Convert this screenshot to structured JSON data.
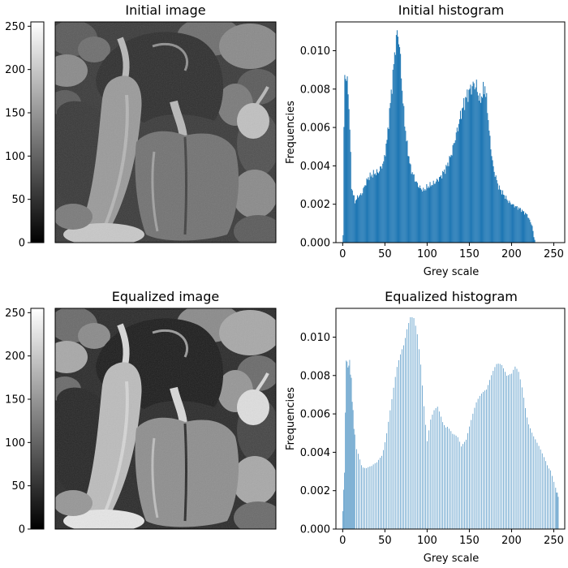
{
  "chart_data": [
    {
      "type": "image",
      "title": "Initial image",
      "colorbar": {
        "cmap": "gray",
        "range": [
          0,
          255
        ],
        "ticks": [
          0,
          50,
          100,
          150,
          200,
          250
        ]
      },
      "content": "grayscale peppers photograph"
    },
    {
      "type": "bar",
      "title": "Initial histogram",
      "xlabel": "Grey scale",
      "ylabel": "Frequencies",
      "xlim": [
        0,
        255
      ],
      "ylim": [
        0,
        0.0115
      ],
      "xticks": [
        0,
        50,
        100,
        150,
        200,
        250
      ],
      "yticks": [
        "0.000",
        "0.002",
        "0.004",
        "0.006",
        "0.008",
        "0.010"
      ],
      "color": "#1f77b4",
      "curve_points": [
        [
          0,
          0.0004
        ],
        [
          1,
          0.006
        ],
        [
          2,
          0.0091
        ],
        [
          4,
          0.0088
        ],
        [
          6,
          0.0082
        ],
        [
          8,
          0.0062
        ],
        [
          10,
          0.003
        ],
        [
          14,
          0.0022
        ],
        [
          18,
          0.0025
        ],
        [
          22,
          0.0026
        ],
        [
          26,
          0.0031
        ],
        [
          30,
          0.0035
        ],
        [
          36,
          0.0037
        ],
        [
          42,
          0.0038
        ],
        [
          48,
          0.0043
        ],
        [
          52,
          0.0055
        ],
        [
          56,
          0.0075
        ],
        [
          59,
          0.009
        ],
        [
          62,
          0.0106
        ],
        [
          64,
          0.0112
        ],
        [
          66,
          0.011
        ],
        [
          68,
          0.0098
        ],
        [
          71,
          0.0075
        ],
        [
          75,
          0.0055
        ],
        [
          80,
          0.004
        ],
        [
          86,
          0.0033
        ],
        [
          90,
          0.003
        ],
        [
          95,
          0.0028
        ],
        [
          100,
          0.003
        ],
        [
          108,
          0.0032
        ],
        [
          115,
          0.0035
        ],
        [
          122,
          0.004
        ],
        [
          128,
          0.0047
        ],
        [
          135,
          0.006
        ],
        [
          140,
          0.007
        ],
        [
          145,
          0.0077
        ],
        [
          150,
          0.0082
        ],
        [
          155,
          0.0085
        ],
        [
          158,
          0.0084
        ],
        [
          162,
          0.0076
        ],
        [
          165,
          0.008
        ],
        [
          168,
          0.0084
        ],
        [
          171,
          0.0072
        ],
        [
          174,
          0.0055
        ],
        [
          178,
          0.004
        ],
        [
          184,
          0.003
        ],
        [
          190,
          0.0026
        ],
        [
          196,
          0.0022
        ],
        [
          202,
          0.002
        ],
        [
          210,
          0.0018
        ],
        [
          215,
          0.0016
        ],
        [
          218,
          0.0015
        ],
        [
          221,
          0.0012
        ],
        [
          224,
          0.0009
        ],
        [
          226,
          0.0003
        ],
        [
          228,
          0.0
        ]
      ]
    },
    {
      "type": "image",
      "title": "Equalized image",
      "colorbar": {
        "cmap": "gray",
        "range": [
          0,
          255
        ],
        "ticks": [
          0,
          50,
          100,
          150,
          200,
          250
        ]
      },
      "content": "histogram-equalized grayscale peppers photograph"
    },
    {
      "type": "bar",
      "title": "Equalized histogram",
      "xlabel": "Grey scale",
      "ylabel": "Frequencies",
      "xlim": [
        0,
        255
      ],
      "ylim": [
        0,
        0.0115
      ],
      "xticks": [
        0,
        50,
        100,
        150,
        200,
        250
      ],
      "yticks": [
        "0.000",
        "0.002",
        "0.004",
        "0.006",
        "0.008",
        "0.010"
      ],
      "color": "#1f77b4",
      "note": "sparse comb of spikes following the equalized distribution",
      "curve_points": [
        [
          0,
          0.001
        ],
        [
          2,
          0.0031
        ],
        [
          4,
          0.0091
        ],
        [
          6,
          0.0086
        ],
        [
          8,
          0.0089
        ],
        [
          10,
          0.0079
        ],
        [
          12,
          0.0062
        ],
        [
          15,
          0.0043
        ],
        [
          18,
          0.004
        ],
        [
          22,
          0.0035
        ],
        [
          28,
          0.0033
        ],
        [
          34,
          0.0033
        ],
        [
          40,
          0.0035
        ],
        [
          46,
          0.004
        ],
        [
          52,
          0.0052
        ],
        [
          58,
          0.0068
        ],
        [
          64,
          0.0085
        ],
        [
          70,
          0.0098
        ],
        [
          75,
          0.0108
        ],
        [
          80,
          0.0112
        ],
        [
          84,
          0.011
        ],
        [
          88,
          0.0102
        ],
        [
          92,
          0.0088
        ],
        [
          96,
          0.0068
        ],
        [
          100,
          0.0048
        ],
        [
          104,
          0.0058
        ],
        [
          108,
          0.0062
        ],
        [
          112,
          0.0064
        ],
        [
          118,
          0.0058
        ],
        [
          124,
          0.0056
        ],
        [
          130,
          0.005
        ],
        [
          136,
          0.0048
        ],
        [
          140,
          0.0044
        ],
        [
          146,
          0.005
        ],
        [
          152,
          0.0058
        ],
        [
          158,
          0.0066
        ],
        [
          164,
          0.0072
        ],
        [
          170,
          0.0078
        ],
        [
          176,
          0.0082
        ],
        [
          182,
          0.0086
        ],
        [
          188,
          0.0087
        ],
        [
          192,
          0.0086
        ],
        [
          196,
          0.0085
        ],
        [
          200,
          0.0083
        ],
        [
          204,
          0.0085
        ],
        [
          208,
          0.0082
        ],
        [
          212,
          0.0075
        ],
        [
          216,
          0.0066
        ],
        [
          220,
          0.0058
        ],
        [
          225,
          0.005
        ],
        [
          230,
          0.0045
        ],
        [
          236,
          0.004
        ],
        [
          240,
          0.0037
        ],
        [
          246,
          0.0032
        ],
        [
          250,
          0.0025
        ],
        [
          253,
          0.002
        ],
        [
          255,
          0.0018
        ]
      ]
    }
  ]
}
